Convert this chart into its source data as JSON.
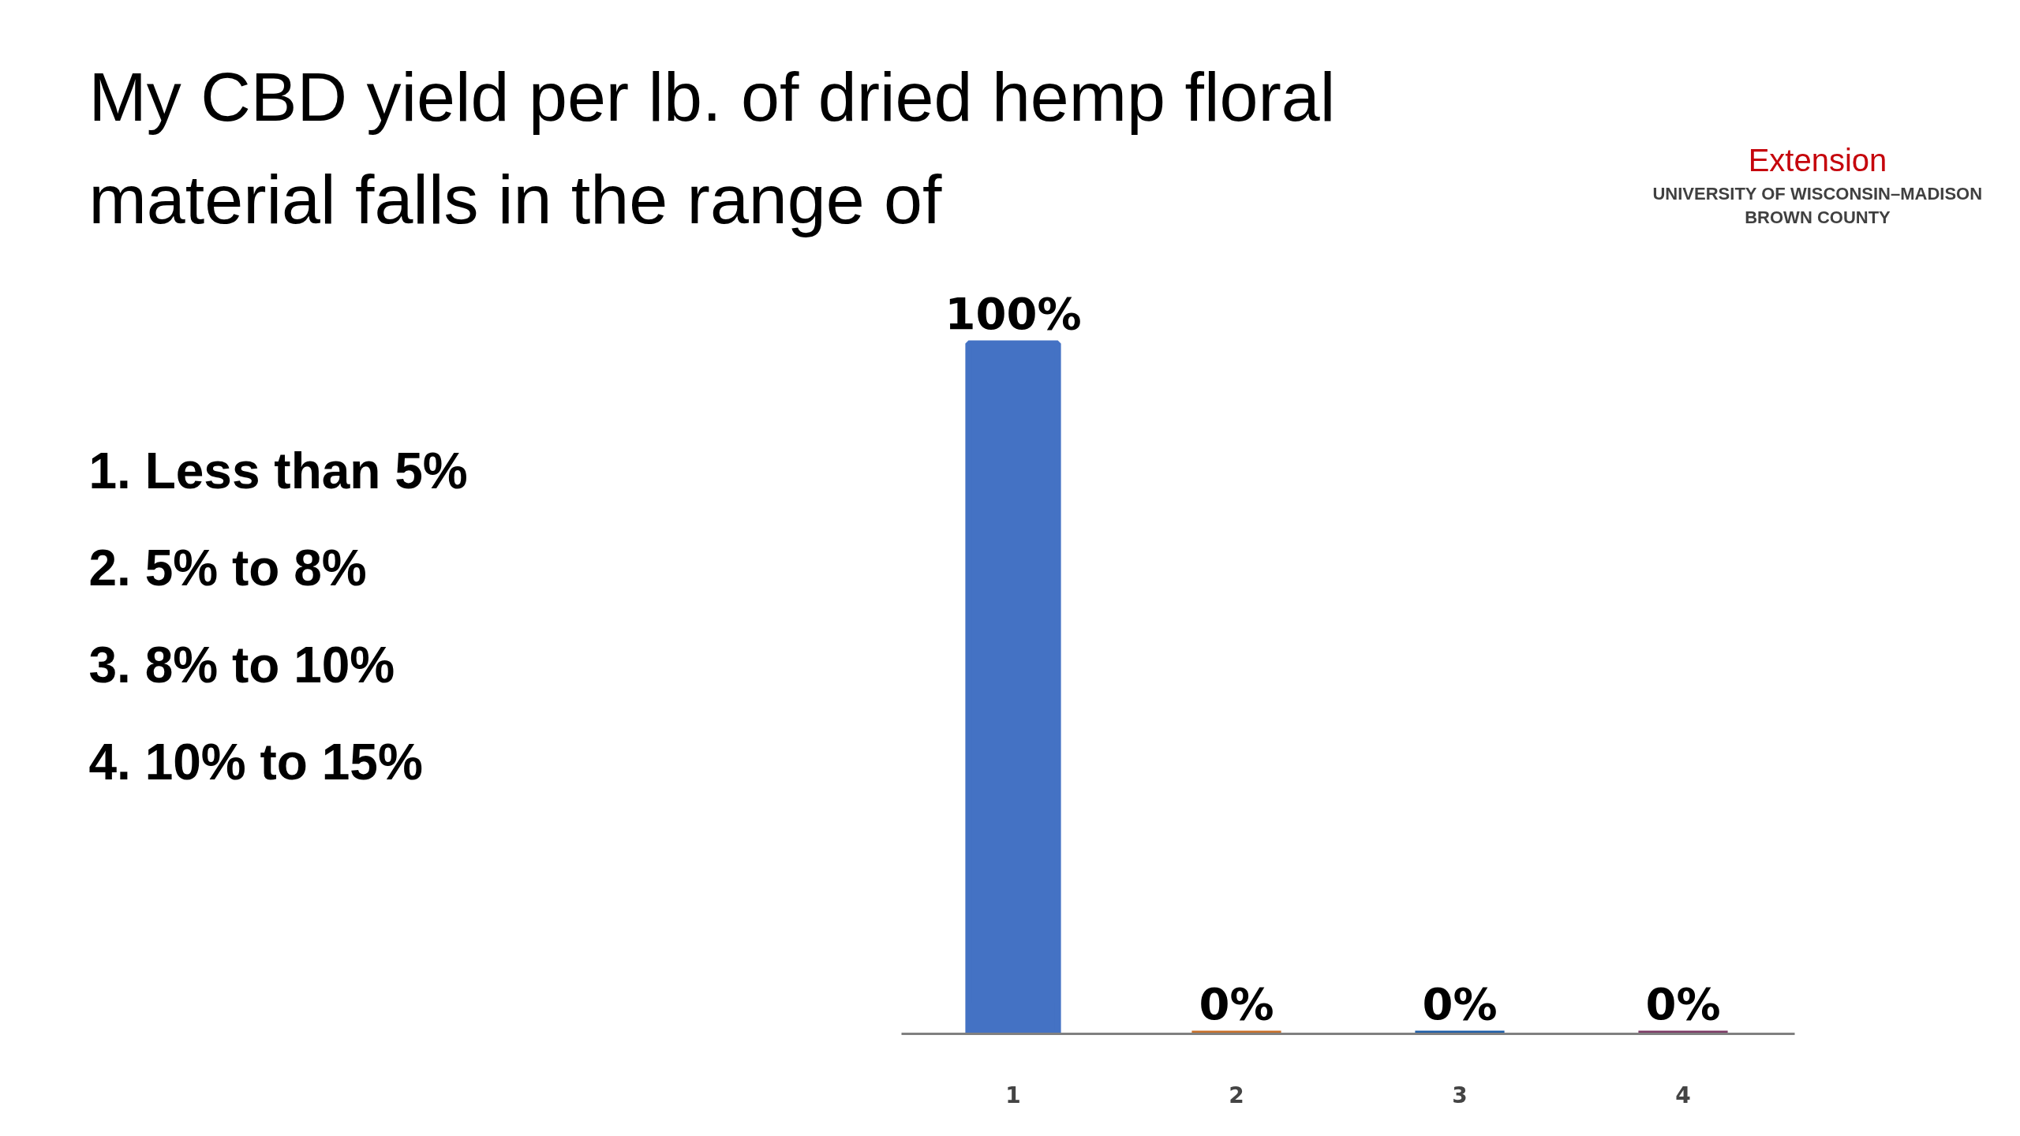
{
  "chart_data": {
    "type": "bar",
    "title": "My CBD yield per lb. of dried hemp floral material falls in the range of",
    "categories": [
      "1",
      "2",
      "3",
      "4"
    ],
    "values": [
      100,
      0,
      0,
      0
    ],
    "value_labels": [
      "100%",
      "0%",
      "0%",
      "0%"
    ],
    "colors": [
      "#4472c4",
      "#c8702a",
      "#1f5fa8",
      "#7d3b66"
    ],
    "annotations": [
      "1. Less than 5%",
      "2. 5% to 8%",
      "3. 8% to 10%",
      "4. 10% to 15%",
      "Extension",
      "UNIVERSITY OF WISCONSIN–MADISON",
      "BROWN COUNTY"
    ],
    "tick_labels": "x"
  }
}
